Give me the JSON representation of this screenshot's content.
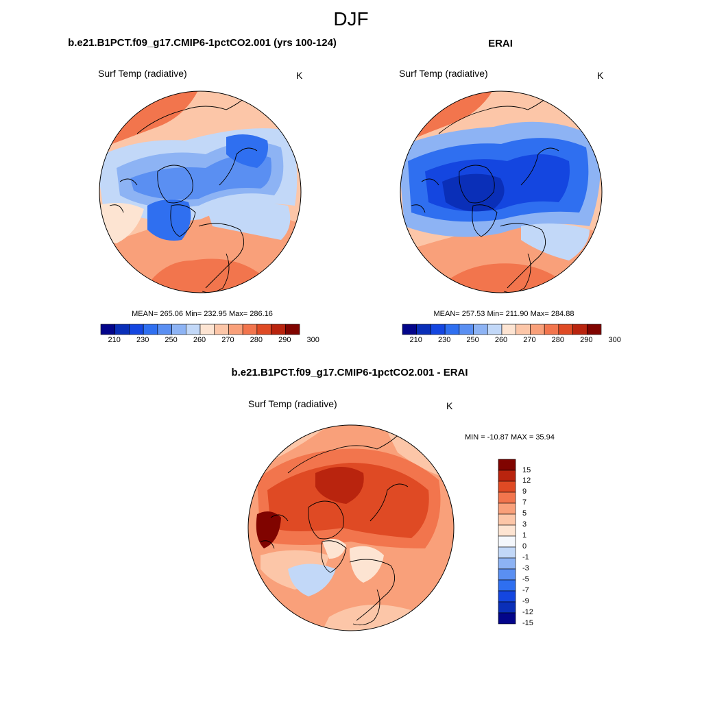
{
  "suptitle": "DJF",
  "panels": [
    {
      "title": "b.e21.B1PCT.f09_g17.CMIP6-1pctCO2.001 (yrs 100-124)",
      "variable": "Surf Temp (radiative)",
      "units": "K",
      "stats": "MEAN= 265.06  Min= 232.95  Max= 286.16"
    },
    {
      "title": "ERAI",
      "variable": "Surf Temp (radiative)",
      "units": "K",
      "stats": "MEAN= 257.53  Min= 211.90  Max= 284.88"
    },
    {
      "title": "b.e21.B1PCT.f09_g17.CMIP6-1pctCO2.001 - ERAI",
      "variable": "Surf Temp (radiative)",
      "units": "K",
      "stats": "MIN = -10.87 MAX =  35.94"
    }
  ],
  "abs_colorbar": {
    "labels": [
      "210",
      "230",
      "250",
      "260",
      "270",
      "280",
      "290",
      "300"
    ],
    "colors": [
      "#03058a",
      "#0a2fb8",
      "#1446e0",
      "#2f6ff0",
      "#5a8ff2",
      "#8db3f4",
      "#c2d8f8",
      "#fde4d2",
      "#fcc6a8",
      "#f9a07a",
      "#f2754d",
      "#df4a24",
      "#b9240e",
      "#800400"
    ]
  },
  "diff_colorbar": {
    "labels": [
      "15",
      "12",
      "9",
      "7",
      "5",
      "3",
      "1",
      "0",
      "-1",
      "-3",
      "-5",
      "-7",
      "-9",
      "-12",
      "-15"
    ],
    "colors": [
      "#800400",
      "#b9240e",
      "#df4a24",
      "#f2754d",
      "#f9a07a",
      "#fcc6a8",
      "#fde4d2",
      "#f4f7fc",
      "#c2d8f8",
      "#8db3f4",
      "#5a8ff2",
      "#2f6ff0",
      "#1446e0",
      "#0a2fb8",
      "#03058a"
    ]
  }
}
